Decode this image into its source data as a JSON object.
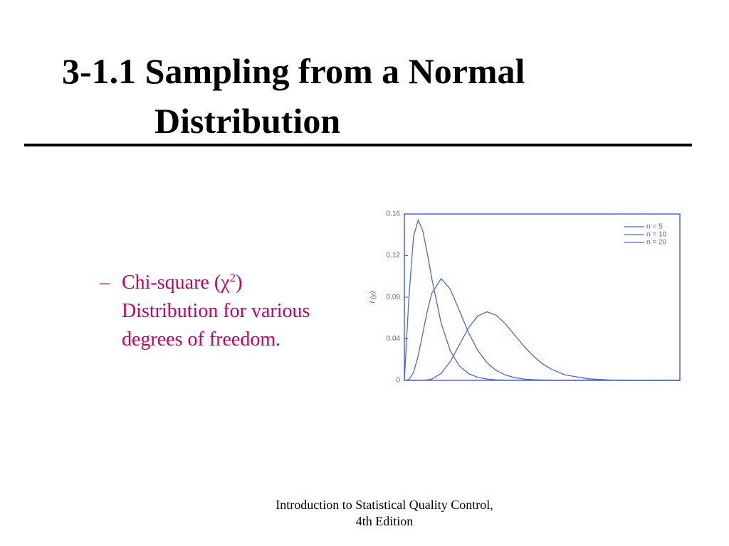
{
  "slide": {
    "title": [
      "3-1.1 Sampling from a Normal",
      "Distribution"
    ],
    "bullet": {
      "marker": "–",
      "first": {
        "text": "Chi-square (χ",
        "sup": "2",
        "end": ")"
      },
      "rest": [
        "Distribution for various",
        "degrees of freedom."
      ]
    },
    "footer": [
      "Introduction to Statistical Quality Control,",
      "4th Edition"
    ]
  },
  "chart_data": {
    "type": "line",
    "y_label": "f (y)",
    "x": [
      0,
      1,
      2,
      3,
      4,
      5,
      6,
      8,
      10,
      12,
      14,
      16,
      18,
      20,
      22,
      24,
      26,
      28,
      30,
      32,
      35,
      40,
      45,
      50,
      55,
      60
    ],
    "xlim": [
      0,
      60
    ],
    "ylim": [
      0,
      0.16
    ],
    "yticks": [
      0,
      0.04,
      0.08,
      0.12,
      0.16
    ],
    "legend": "top-right",
    "series": [
      {
        "name": "n = 5",
        "color": "#4f67d6",
        "values": [
          0,
          0.0807,
          0.1384,
          0.1542,
          0.144,
          0.122,
          0.0973,
          0.0551,
          0.0283,
          0.0137,
          0.0064,
          0.0029,
          0.0013,
          0.0005,
          0.0002,
          0.0001,
          0,
          0,
          0,
          0,
          0,
          0,
          0,
          0,
          0,
          0
        ]
      },
      {
        "name": "n = 10",
        "color": "#4f67d6",
        "values": [
          0,
          0.0008,
          0.0077,
          0.0235,
          0.0451,
          0.0668,
          0.084,
          0.0977,
          0.0877,
          0.0669,
          0.0456,
          0.0286,
          0.0169,
          0.0095,
          0.0051,
          0.0027,
          0.0013,
          0.0007,
          0.0003,
          0.0002,
          0,
          0,
          0,
          0,
          0,
          0
        ]
      },
      {
        "name": "n = 20",
        "color": "#4f67d6",
        "values": [
          0,
          0,
          0,
          0,
          0.0001,
          0.0004,
          0.0014,
          0.0066,
          0.0181,
          0.0344,
          0.0507,
          0.062,
          0.0659,
          0.0626,
          0.0543,
          0.0437,
          0.033,
          0.0237,
          0.0162,
          0.0107,
          0.0053,
          0.0015,
          0.0003,
          0.0001,
          0,
          0
        ]
      }
    ]
  }
}
